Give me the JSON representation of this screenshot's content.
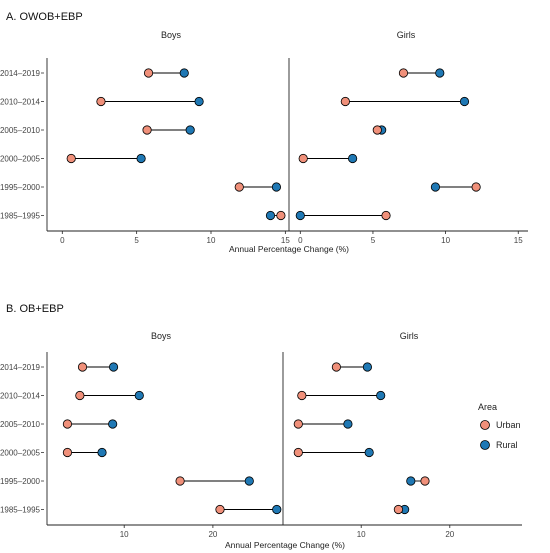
{
  "colors": {
    "urban": "#F0907A",
    "rural": "#1F78B4",
    "axis": "#222222",
    "segment": "#000000"
  },
  "legend": {
    "title": "Area",
    "urban_label": "Urban",
    "rural_label": "Rural",
    "position": "right"
  },
  "chart_data": [
    {
      "type": "dumbbell",
      "title": "A. OWOB+EBP",
      "xlabel": "Annual Percentage Change (%)",
      "categories": [
        "2014–2019",
        "2010–2014",
        "2005–2010",
        "2000–2005",
        "1995–2000",
        "1985–1995"
      ],
      "xlim": [
        -1,
        15.3
      ],
      "xticks": [
        0,
        5,
        10,
        15
      ],
      "panels": [
        {
          "name": "Boys",
          "series": [
            {
              "name": "Urban",
              "values": [
                5.8,
                2.6,
                5.7,
                0.6,
                11.9,
                14.7
              ]
            },
            {
              "name": "Rural",
              "values": [
                8.2,
                9.2,
                8.6,
                5.3,
                14.4,
                14.0
              ]
            }
          ]
        },
        {
          "name": "Girls",
          "series": [
            {
              "name": "Urban",
              "values": [
                7.1,
                3.1,
                5.3,
                0.2,
                12.1,
                5.9
              ]
            },
            {
              "name": "Rural",
              "values": [
                9.6,
                11.3,
                5.6,
                3.6,
                9.3,
                0.0
              ]
            }
          ]
        }
      ]
    },
    {
      "type": "dumbbell",
      "title": "B.  OB+EBP",
      "xlabel": "Annual Percentage Change (%)",
      "categories": [
        "2014–2019",
        "2010–2014",
        "2005–2010",
        "2000–2005",
        "1995–2000",
        "1985–1995"
      ],
      "xlim": [
        2.5,
        28.5
      ],
      "xticks": [
        10,
        20
      ],
      "panels": [
        {
          "name": "Boys",
          "series": [
            {
              "name": "Urban",
              "values": [
                5.3,
                5.0,
                3.6,
                3.6,
                16.3,
                20.8
              ]
            },
            {
              "name": "Rural",
              "values": [
                8.8,
                11.7,
                8.7,
                7.5,
                24.1,
                27.2
              ]
            }
          ]
        },
        {
          "name": "Girls",
          "series": [
            {
              "name": "Urban",
              "values": [
                7.2,
                3.3,
                2.9,
                2.9,
                17.2,
                14.2
              ]
            },
            {
              "name": "Rural",
              "values": [
                10.7,
                12.2,
                8.5,
                10.9,
                15.6,
                14.9
              ]
            }
          ]
        }
      ]
    }
  ]
}
